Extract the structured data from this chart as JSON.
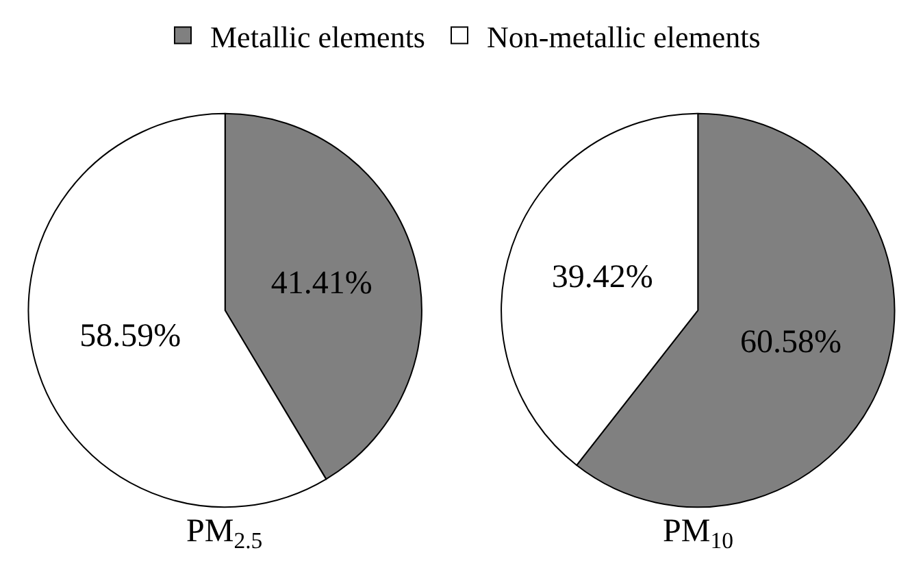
{
  "chart_data": [
    {
      "type": "pie",
      "title": "PM$_{2.5}$",
      "categories": [
        "Metallic elements",
        "Non-metallic elements"
      ],
      "values": [
        41.41,
        58.59
      ],
      "colors": [
        "#808080",
        "#ffffff"
      ],
      "value_labels": [
        "41.41%",
        "58.59%"
      ],
      "legend": "top"
    },
    {
      "type": "pie",
      "title": "PM$_{10}$",
      "categories": [
        null,
        null
      ],
      "values": [
        60.58,
        39.42
      ],
      "colors": [
        "#808080",
        "#ffffff"
      ],
      "value_labels": [
        "60.58%",
        "39.42%"
      ]
    }
  ]
}
